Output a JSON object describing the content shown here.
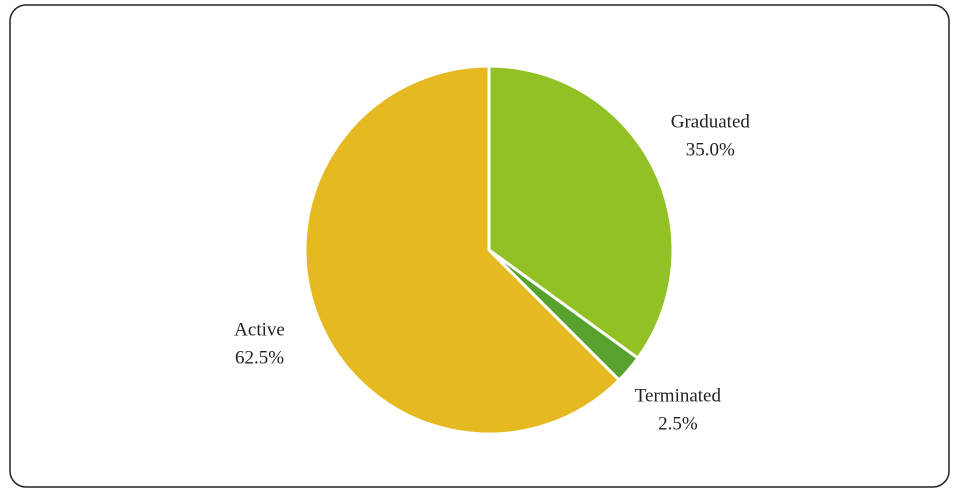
{
  "chart_data": {
    "type": "pie",
    "categories": [
      "Graduated",
      "Terminated",
      "Active"
    ],
    "values": [
      35.0,
      2.5,
      62.5
    ],
    "value_labels": [
      "35.0%",
      "2.5%",
      "62.5%"
    ],
    "colors": [
      "#92c125",
      "#56a22c",
      "#e5b91f"
    ]
  }
}
